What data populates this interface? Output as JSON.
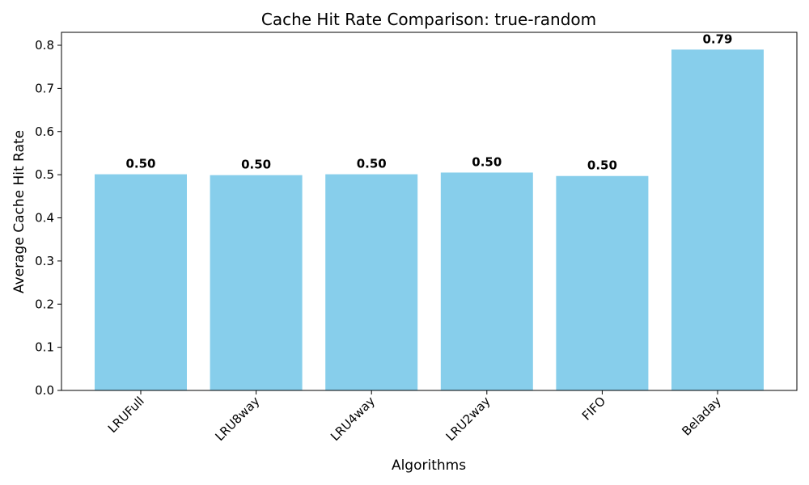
{
  "chart_data": {
    "type": "bar",
    "title": "Cache Hit Rate Comparison: true-random",
    "xlabel": "Algorithms",
    "ylabel": "Average Cache Hit Rate",
    "categories": [
      "LRUFull",
      "LRU8way",
      "LRU4way",
      "LRU2way",
      "FIFO",
      "Beladay"
    ],
    "values": [
      0.501,
      0.499,
      0.501,
      0.505,
      0.497,
      0.79
    ],
    "data_labels": [
      "0.50",
      "0.50",
      "0.50",
      "0.50",
      "0.50",
      "0.79"
    ],
    "ylim": [
      0,
      0.83
    ],
    "yticks": [
      0.0,
      0.1,
      0.2,
      0.3,
      0.4,
      0.5,
      0.6,
      0.7,
      0.8
    ],
    "ytick_labels": [
      "0.0",
      "0.1",
      "0.2",
      "0.3",
      "0.4",
      "0.5",
      "0.6",
      "0.7",
      "0.8"
    ],
    "bar_color": "#87CEEB",
    "grid": false,
    "legend": "none"
  }
}
